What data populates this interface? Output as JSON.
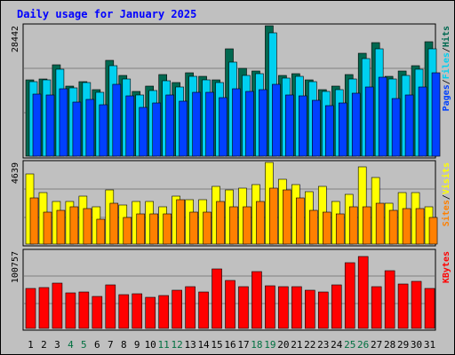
{
  "title": "Daily usage for January 2025",
  "chart_data": [
    {
      "type": "bar",
      "panel": "top",
      "ymax_label": "28442",
      "ylim": [
        0,
        28442
      ],
      "legend": [
        "Pages",
        "Files",
        "Hits"
      ],
      "categories": [
        "1",
        "2",
        "3",
        "4",
        "5",
        "6",
        "7",
        "8",
        "9",
        "10",
        "11",
        "12",
        "13",
        "14",
        "15",
        "16",
        "17",
        "18",
        "19",
        "20",
        "21",
        "22",
        "23",
        "24",
        "25",
        "26",
        "27",
        "28",
        "29",
        "30",
        "31"
      ],
      "weekend_days": [
        "4",
        "5",
        "11",
        "12",
        "18",
        "19",
        "25",
        "26"
      ],
      "series": [
        {
          "name": "Hits",
          "color": "#006850",
          "values": [
            16700,
            16900,
            19900,
            15300,
            16300,
            14500,
            20900,
            17700,
            14100,
            15300,
            17800,
            16000,
            18200,
            17500,
            16600,
            23400,
            19200,
            18600,
            28442,
            17700,
            17900,
            16700,
            14600,
            15300,
            17800,
            22500,
            24700,
            17500,
            18500,
            19800,
            24900
          ]
        },
        {
          "name": "Files",
          "color": "#00d0f0",
          "values": [
            16200,
            16600,
            18900,
            14900,
            16000,
            14000,
            19700,
            16900,
            13400,
            14400,
            16400,
            15000,
            17400,
            16700,
            16000,
            20600,
            17600,
            18000,
            26900,
            17000,
            17500,
            16200,
            14100,
            14600,
            16900,
            21300,
            23500,
            16900,
            17600,
            18900,
            23400
          ]
        },
        {
          "name": "Pages",
          "color": "#0040ff",
          "values": [
            13500,
            13300,
            14700,
            11800,
            12300,
            11300,
            15700,
            13100,
            10600,
            11700,
            13400,
            12000,
            14000,
            13900,
            12700,
            14700,
            14200,
            14600,
            15700,
            13400,
            13200,
            12100,
            11000,
            11600,
            13800,
            15100,
            17200,
            12600,
            13300,
            15000,
            18200
          ]
        }
      ]
    },
    {
      "type": "bar",
      "panel": "middle",
      "ymax_label": "4639",
      "ylim": [
        0,
        4639
      ],
      "legend": [
        "Sites",
        "Visits"
      ],
      "categories": [
        "1",
        "2",
        "3",
        "4",
        "5",
        "6",
        "7",
        "8",
        "9",
        "10",
        "11",
        "12",
        "13",
        "14",
        "15",
        "16",
        "17",
        "18",
        "19",
        "20",
        "21",
        "22",
        "23",
        "24",
        "25",
        "26",
        "27",
        "28",
        "29",
        "30",
        "31"
      ],
      "series": [
        {
          "name": "Visits",
          "color": "#ffff00",
          "values": [
            4000,
            2900,
            2400,
            2400,
            2700,
            2100,
            3100,
            2200,
            2400,
            2400,
            2100,
            2700,
            2500,
            2500,
            3300,
            3100,
            3200,
            3400,
            4639,
            3700,
            3400,
            3000,
            3300,
            2400,
            2800,
            4400,
            3800,
            2300,
            2900,
            2900,
            2100
          ]
        },
        {
          "name": "Sites",
          "color": "#ff8000",
          "values": [
            2600,
            1800,
            1900,
            2100,
            2000,
            1400,
            2300,
            1500,
            1700,
            1700,
            1700,
            2500,
            1800,
            1800,
            2400,
            2100,
            2100,
            2400,
            3200,
            3100,
            2600,
            1900,
            1800,
            1700,
            2100,
            2100,
            2300,
            1900,
            2000,
            2000,
            1500
          ]
        }
      ]
    },
    {
      "type": "bar",
      "panel": "bottom",
      "ymax_label": "100757",
      "ylim": [
        0,
        100757
      ],
      "legend": [
        "KBytes"
      ],
      "categories": [
        "1",
        "2",
        "3",
        "4",
        "5",
        "6",
        "7",
        "8",
        "9",
        "10",
        "11",
        "12",
        "13",
        "14",
        "15",
        "16",
        "17",
        "18",
        "19",
        "20",
        "21",
        "22",
        "23",
        "24",
        "25",
        "26",
        "27",
        "28",
        "29",
        "30",
        "31"
      ],
      "series": [
        {
          "name": "KBytes",
          "color": "#ff0000",
          "values": [
            52000,
            53000,
            59000,
            46000,
            48000,
            42000,
            57000,
            44000,
            45000,
            41000,
            43000,
            50000,
            54000,
            48000,
            78000,
            63000,
            55000,
            74000,
            56000,
            55000,
            54000,
            50000,
            47000,
            57000,
            86000,
            94000,
            55000,
            75000,
            58000,
            61000,
            52000
          ]
        }
      ]
    }
  ],
  "colors": {
    "background": "#c0c0c0",
    "panel": "#c0c0c0",
    "title": "#0000ff",
    "weekend_label": "#007040",
    "weekday_label": "#000000",
    "bar_outline": "#000000",
    "gridline": "#808080"
  }
}
